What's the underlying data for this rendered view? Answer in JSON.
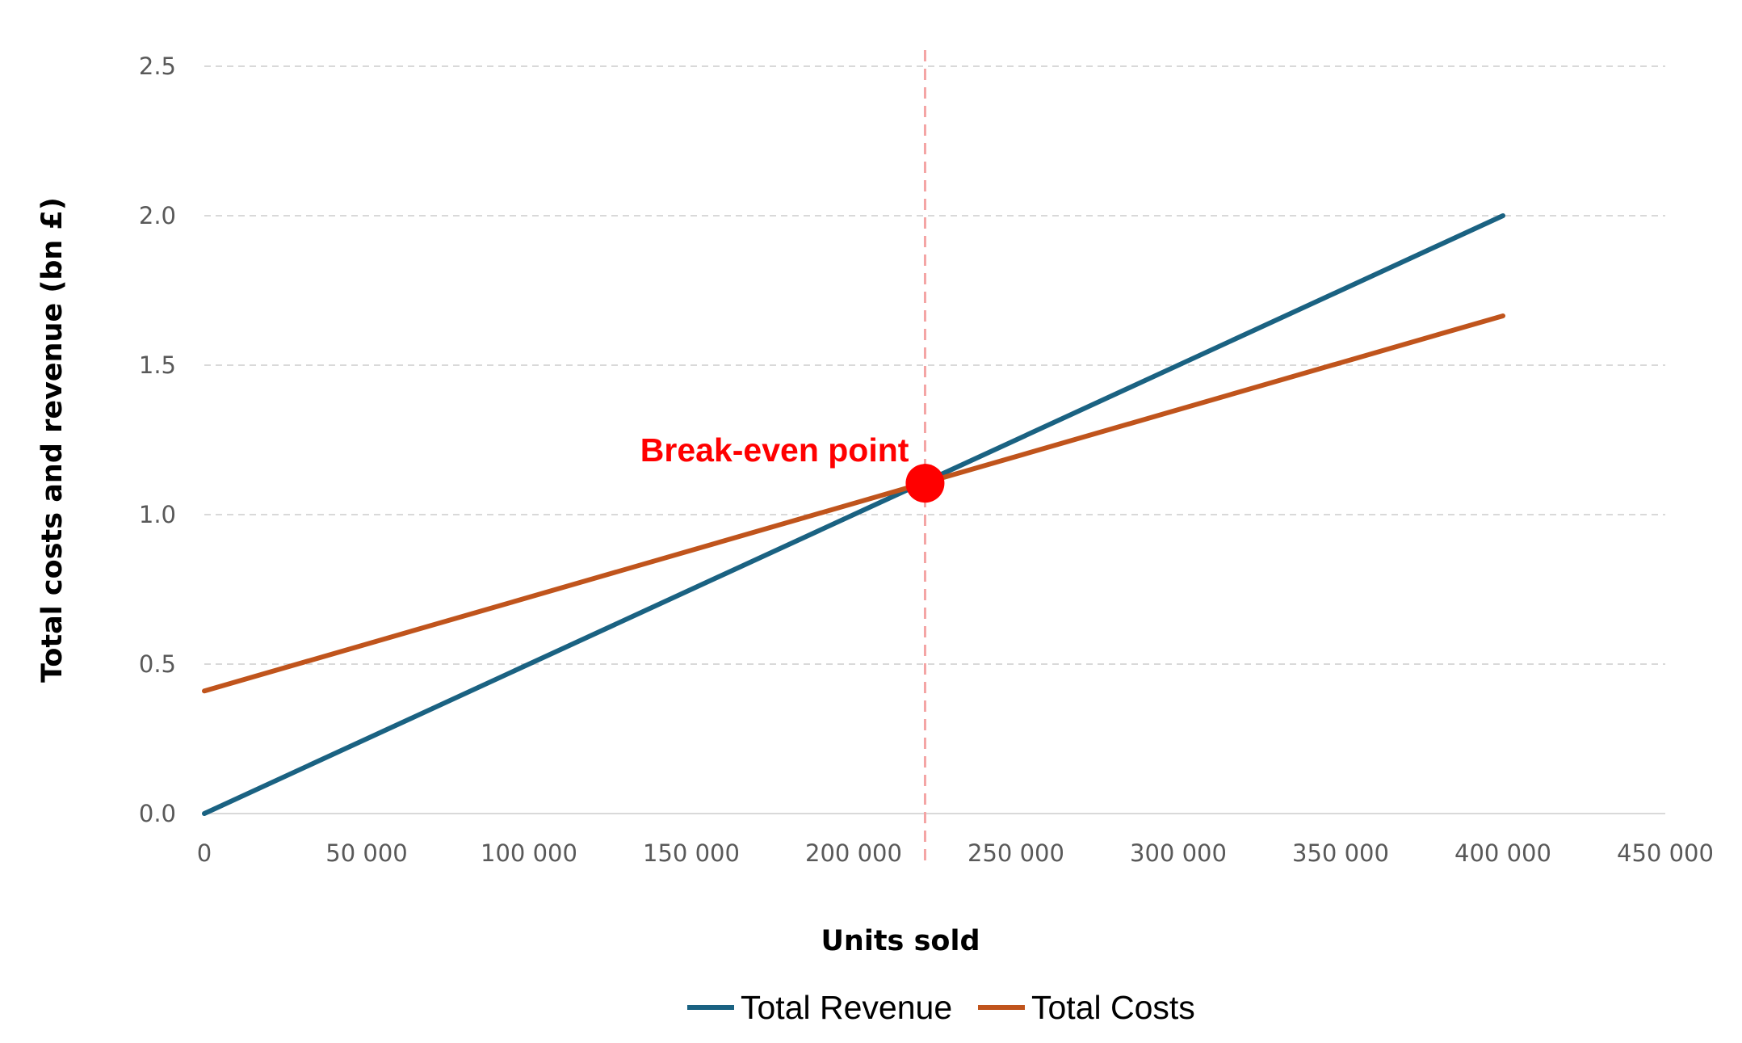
{
  "chart_data": {
    "type": "line",
    "title": "",
    "xlabel": "Units sold",
    "ylabel": "Total costs and revenue (bn £)",
    "xlim": [
      0,
      450000
    ],
    "ylim": [
      0,
      2.5
    ],
    "x_ticks": [
      0,
      50000,
      100000,
      150000,
      200000,
      250000,
      300000,
      350000,
      400000,
      450000
    ],
    "x_tick_labels": [
      "0",
      "50 000",
      "100 000",
      "150 000",
      "200 000",
      "250 000",
      "300 000",
      "350 000",
      "400 000",
      "450 000"
    ],
    "y_ticks": [
      0,
      0.5,
      1.0,
      1.5,
      2.0,
      2.5
    ],
    "y_tick_labels": [
      "0.0",
      "0.5",
      "1.0",
      "1.5",
      "2.0",
      "2.5"
    ],
    "grid": "horizontal-dashed",
    "legend_position": "bottom",
    "series": [
      {
        "name": "Total Revenue",
        "color": "#1a6282",
        "x": [
          0,
          400000
        ],
        "y": [
          0,
          2.0
        ]
      },
      {
        "name": "Total Costs",
        "color": "#c0541c",
        "x": [
          0,
          400000
        ],
        "y": [
          0.41,
          1.665
        ]
      }
    ],
    "annotations": [
      {
        "label": "Break-even point",
        "x": 222000,
        "y": 1.105,
        "color": "#ff0000",
        "marker": "circle",
        "vertical_line": true,
        "vertical_line_color": "#f4a4a4"
      }
    ]
  }
}
